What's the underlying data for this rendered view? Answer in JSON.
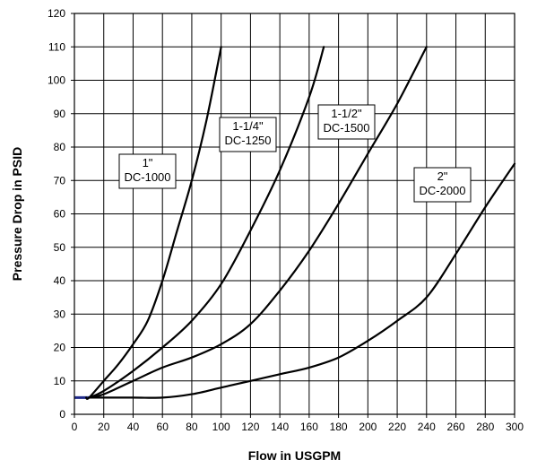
{
  "chart_data": {
    "type": "line",
    "title": "",
    "xlabel": "Flow in USGPM",
    "ylabel": "Pressure Drop in PSID",
    "xlim": [
      0,
      300
    ],
    "ylim": [
      0,
      120
    ],
    "xticks": [
      "0",
      "20",
      "40",
      "60",
      "80",
      "100",
      "120",
      "140",
      "160",
      "180",
      "200",
      "220",
      "240",
      "260",
      "280",
      "300"
    ],
    "yticks": [
      "0",
      "10",
      "20",
      "30",
      "40",
      "50",
      "60",
      "70",
      "80",
      "90",
      "100",
      "110",
      "120"
    ],
    "grid": true,
    "series": [
      {
        "name": "1\" DC-1000",
        "label_lines": [
          "1\"",
          "DC-1000"
        ],
        "x": [
          8,
          10,
          20,
          30,
          40,
          50,
          60,
          70,
          80,
          90,
          100
        ],
        "y": [
          5,
          5,
          10,
          15,
          21,
          28,
          40,
          55,
          70,
          88,
          110
        ]
      },
      {
        "name": "1-1/4\" DC-1250",
        "label_lines": [
          "1-1/4\"",
          "DC-1250"
        ],
        "x": [
          10,
          20,
          40,
          60,
          80,
          100,
          120,
          140,
          160,
          170
        ],
        "y": [
          5,
          7,
          13,
          20,
          28,
          39,
          55,
          73,
          95,
          110
        ]
      },
      {
        "name": "1-1/2\" DC-1500",
        "label_lines": [
          "1-1/2\"",
          "DC-1500"
        ],
        "x": [
          10,
          20,
          40,
          60,
          80,
          100,
          120,
          140,
          160,
          180,
          200,
          220,
          240
        ],
        "y": [
          5,
          6,
          10,
          14,
          17,
          21,
          27,
          37,
          49,
          63,
          78,
          93,
          110
        ]
      },
      {
        "name": "2\" DC-2000",
        "label_lines": [
          "2\"",
          "DC-2000"
        ],
        "x": [
          10,
          40,
          60,
          80,
          100,
          120,
          140,
          160,
          180,
          200,
          220,
          240,
          260,
          280,
          300
        ],
        "y": [
          5,
          5,
          5,
          6,
          8,
          10,
          12,
          14,
          17,
          22,
          28,
          35,
          48,
          62,
          75
        ]
      }
    ],
    "baseline": {
      "x": [
        0,
        10
      ],
      "y": [
        5,
        5
      ],
      "color": "#1f2a8a"
    },
    "colors": {
      "line": "#000000",
      "grid": "#000000",
      "background": "#ffffff"
    }
  }
}
